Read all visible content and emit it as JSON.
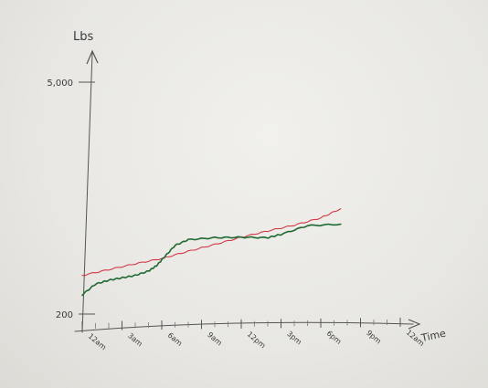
{
  "chart_data": {
    "type": "line",
    "xlabel": "Time",
    "ylabel": "Lbs",
    "y_ticks": [
      {
        "label": "5,000",
        "value": 5000
      },
      {
        "label": "200",
        "value": 200
      }
    ],
    "x_tick_labels": [
      "12am",
      "3am",
      "6am",
      "9am",
      "12pm",
      "3pm",
      "6pm",
      "9pm",
      "12am"
    ],
    "x_tick_hours": [
      0,
      3,
      6,
      9,
      12,
      15,
      18,
      21,
      24
    ],
    "ylim": [
      200,
      5000
    ],
    "xlim": [
      0,
      24
    ],
    "grid": false,
    "series": [
      {
        "color": "#d23a4a",
        "x": [
          0,
          2,
          4,
          6,
          8,
          10,
          12,
          14,
          16,
          18,
          19.5
        ],
        "y": [
          1000,
          1120,
          1240,
          1350,
          1500,
          1640,
          1790,
          1920,
          2040,
          2190,
          2380
        ]
      },
      {
        "color": "#1f6a32",
        "x": [
          0,
          1,
          2,
          3,
          4,
          5,
          5.6,
          6.2,
          7,
          8,
          10,
          12,
          14,
          15,
          17,
          19.5
        ],
        "y": [
          600,
          820,
          900,
          950,
          1000,
          1090,
          1200,
          1380,
          1620,
          1740,
          1780,
          1790,
          1780,
          1850,
          2030,
          2060
        ]
      }
    ]
  }
}
